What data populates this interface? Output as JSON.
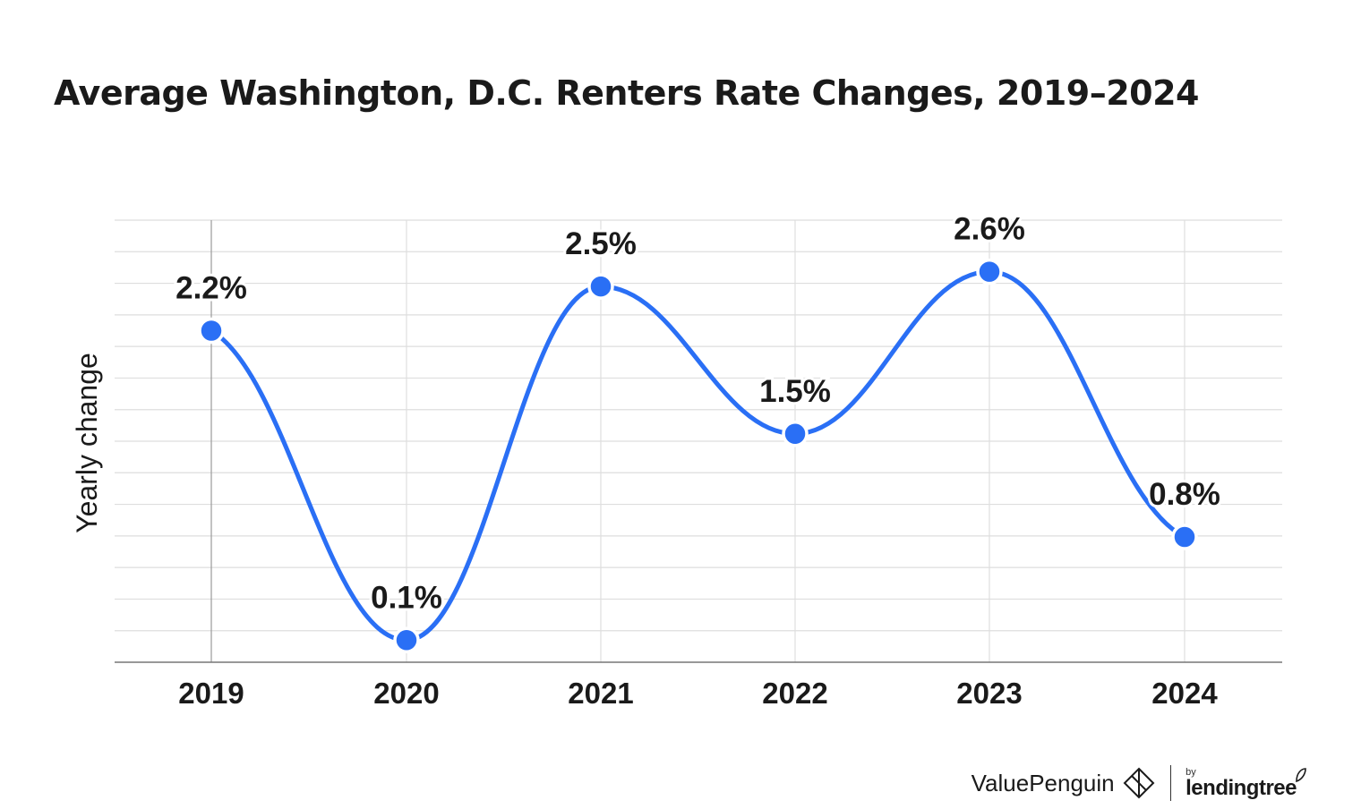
{
  "chart_data": {
    "type": "line",
    "title": "Average Washington, D.C. Renters Rate Changes, 2019–2024",
    "xlabel": "",
    "ylabel": "Yearly change",
    "categories": [
      "2019",
      "2020",
      "2021",
      "2022",
      "2023",
      "2024"
    ],
    "values": [
      2.2,
      0.1,
      2.5,
      1.5,
      2.6,
      0.8
    ],
    "data_labels": [
      "2.2%",
      "0.1%",
      "2.5%",
      "1.5%",
      "2.6%",
      "0.8%"
    ],
    "ylim": [
      -0.05,
      2.95
    ],
    "grid": true,
    "smooth": true,
    "line_color": "#2a6ff5",
    "marker_color": "#2a6ff5"
  },
  "footer": {
    "brand": "ValuePenguin",
    "partner_prefix": "by",
    "partner": "lendingtree"
  }
}
